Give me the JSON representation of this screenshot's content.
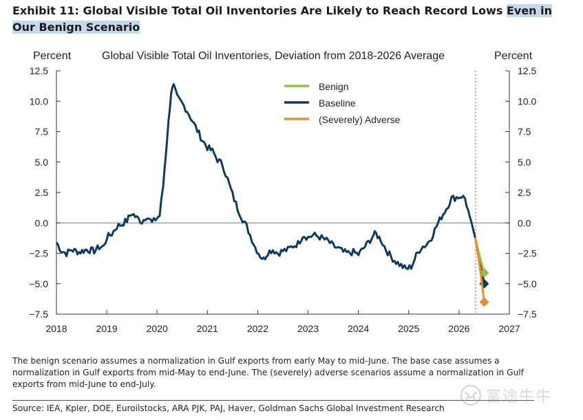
{
  "exhibit": {
    "title_main": "Exhibit 11: Global Visible Total Oil Inventories Are Likely to Reach Record Lows ",
    "title_highlight": "Even in Our Benign Scenario"
  },
  "chart_data": {
    "type": "line",
    "title": "Global Visible Total Oil Inventories, Deviation from 2018-2026 Average",
    "ylabel_left": "Percent",
    "ylabel_right": "Percent",
    "xlim": [
      2018,
      2027
    ],
    "ylim": [
      -7.5,
      12.5
    ],
    "x_ticks": [
      "2018",
      "2019",
      "2020",
      "2021",
      "2022",
      "2023",
      "2024",
      "2025",
      "2026",
      "2027"
    ],
    "y_ticks": [
      "12.5",
      "10.0",
      "7.5",
      "5.0",
      "2.5",
      "0.0",
      "−2.5",
      "−5.0",
      "−7.5"
    ],
    "zero_line": true,
    "vertical_marker_x": 2026.33,
    "legend_position": "top-right",
    "series": [
      {
        "name": "Baseline",
        "color": "#0f3a5f",
        "points": [
          [
            2018.0,
            -1.6
          ],
          [
            2018.1,
            -2.3
          ],
          [
            2018.2,
            -2.5
          ],
          [
            2018.3,
            -2.2
          ],
          [
            2018.45,
            -2.4
          ],
          [
            2018.6,
            -2.2
          ],
          [
            2018.75,
            -2.3
          ],
          [
            2018.85,
            -2.0
          ],
          [
            2018.95,
            -1.9
          ],
          [
            2019.0,
            -1.2
          ],
          [
            2019.1,
            -0.9
          ],
          [
            2019.2,
            -0.3
          ],
          [
            2019.3,
            -0.1
          ],
          [
            2019.4,
            0.2
          ],
          [
            2019.5,
            0.8
          ],
          [
            2019.6,
            0.4
          ],
          [
            2019.7,
            0.1
          ],
          [
            2019.8,
            0.6
          ],
          [
            2019.9,
            0.0
          ],
          [
            2019.97,
            0.3
          ],
          [
            2020.05,
            0.6
          ],
          [
            2020.12,
            3.0
          ],
          [
            2020.2,
            7.0
          ],
          [
            2020.28,
            10.8
          ],
          [
            2020.33,
            11.2
          ],
          [
            2020.4,
            10.3
          ],
          [
            2020.5,
            9.8
          ],
          [
            2020.6,
            9.2
          ],
          [
            2020.7,
            8.4
          ],
          [
            2020.8,
            7.6
          ],
          [
            2020.9,
            6.8
          ],
          [
            2021.0,
            6.2
          ],
          [
            2021.1,
            5.9
          ],
          [
            2021.2,
            5.2
          ],
          [
            2021.3,
            4.8
          ],
          [
            2021.4,
            3.6
          ],
          [
            2021.5,
            2.3
          ],
          [
            2021.6,
            1.2
          ],
          [
            2021.7,
            0.3
          ],
          [
            2021.78,
            -0.3
          ],
          [
            2021.85,
            -1.0
          ],
          [
            2021.95,
            -2.0
          ],
          [
            2022.05,
            -2.7
          ],
          [
            2022.12,
            -3.0
          ],
          [
            2022.2,
            -2.4
          ],
          [
            2022.3,
            -2.2
          ],
          [
            2022.4,
            -2.5
          ],
          [
            2022.5,
            -2.3
          ],
          [
            2022.6,
            -2.2
          ],
          [
            2022.7,
            -1.9
          ],
          [
            2022.8,
            -1.7
          ],
          [
            2022.9,
            -1.0
          ],
          [
            2023.0,
            -1.2
          ],
          [
            2023.1,
            -1.0
          ],
          [
            2023.2,
            -1.1
          ],
          [
            2023.3,
            -1.3
          ],
          [
            2023.4,
            -1.5
          ],
          [
            2023.5,
            -1.9
          ],
          [
            2023.6,
            -2.1
          ],
          [
            2023.7,
            -2.4
          ],
          [
            2023.8,
            -2.5
          ],
          [
            2023.9,
            -2.4
          ],
          [
            2024.0,
            -2.6
          ],
          [
            2024.1,
            -2.1
          ],
          [
            2024.2,
            -1.6
          ],
          [
            2024.3,
            -1.0
          ],
          [
            2024.35,
            -0.9
          ],
          [
            2024.45,
            -1.4
          ],
          [
            2024.55,
            -2.2
          ],
          [
            2024.65,
            -2.8
          ],
          [
            2024.75,
            -3.2
          ],
          [
            2024.85,
            -3.5
          ],
          [
            2024.95,
            -3.8
          ],
          [
            2025.05,
            -3.6
          ],
          [
            2025.15,
            -2.7
          ],
          [
            2025.25,
            -2.0
          ],
          [
            2025.35,
            -1.8
          ],
          [
            2025.45,
            -1.2
          ],
          [
            2025.55,
            -0.3
          ],
          [
            2025.65,
            0.5
          ],
          [
            2025.75,
            1.2
          ],
          [
            2025.85,
            2.0
          ],
          [
            2025.95,
            2.1
          ],
          [
            2026.05,
            2.2
          ],
          [
            2026.12,
            2.0
          ],
          [
            2026.18,
            1.0
          ],
          [
            2026.25,
            0.0
          ],
          [
            2026.32,
            -1.2
          ],
          [
            2026.42,
            -3.2
          ],
          [
            2026.5,
            -5.0
          ]
        ]
      },
      {
        "name": "Benign",
        "color": "#8cc43f",
        "points": [
          [
            2026.32,
            -1.2
          ],
          [
            2026.42,
            -2.9
          ],
          [
            2026.5,
            -4.1
          ]
        ]
      },
      {
        "name": "(Severely) Adverse",
        "color": "#f28a2e",
        "points": [
          [
            2026.32,
            -1.2
          ],
          [
            2026.42,
            -3.8
          ],
          [
            2026.5,
            -6.5
          ]
        ]
      }
    ]
  },
  "notes": {
    "text": "The benign scenario assumes a normalization in Gulf exports from early May to mid-June. The base case assumes a normalization in Gulf exports from mid-May to end-June. The (severely) adverse scenarios assume a normalization in Gulf exports from mid-June to end-July."
  },
  "source": {
    "text": "Source: IEA, Kpler, DOE, Euroilstocks, ARA PJK, PAJ, Haver, Goldman Sachs Global Investment Research"
  },
  "watermark": {
    "text": "富途牛牛",
    "icon": "futu-bull-logo-icon"
  }
}
